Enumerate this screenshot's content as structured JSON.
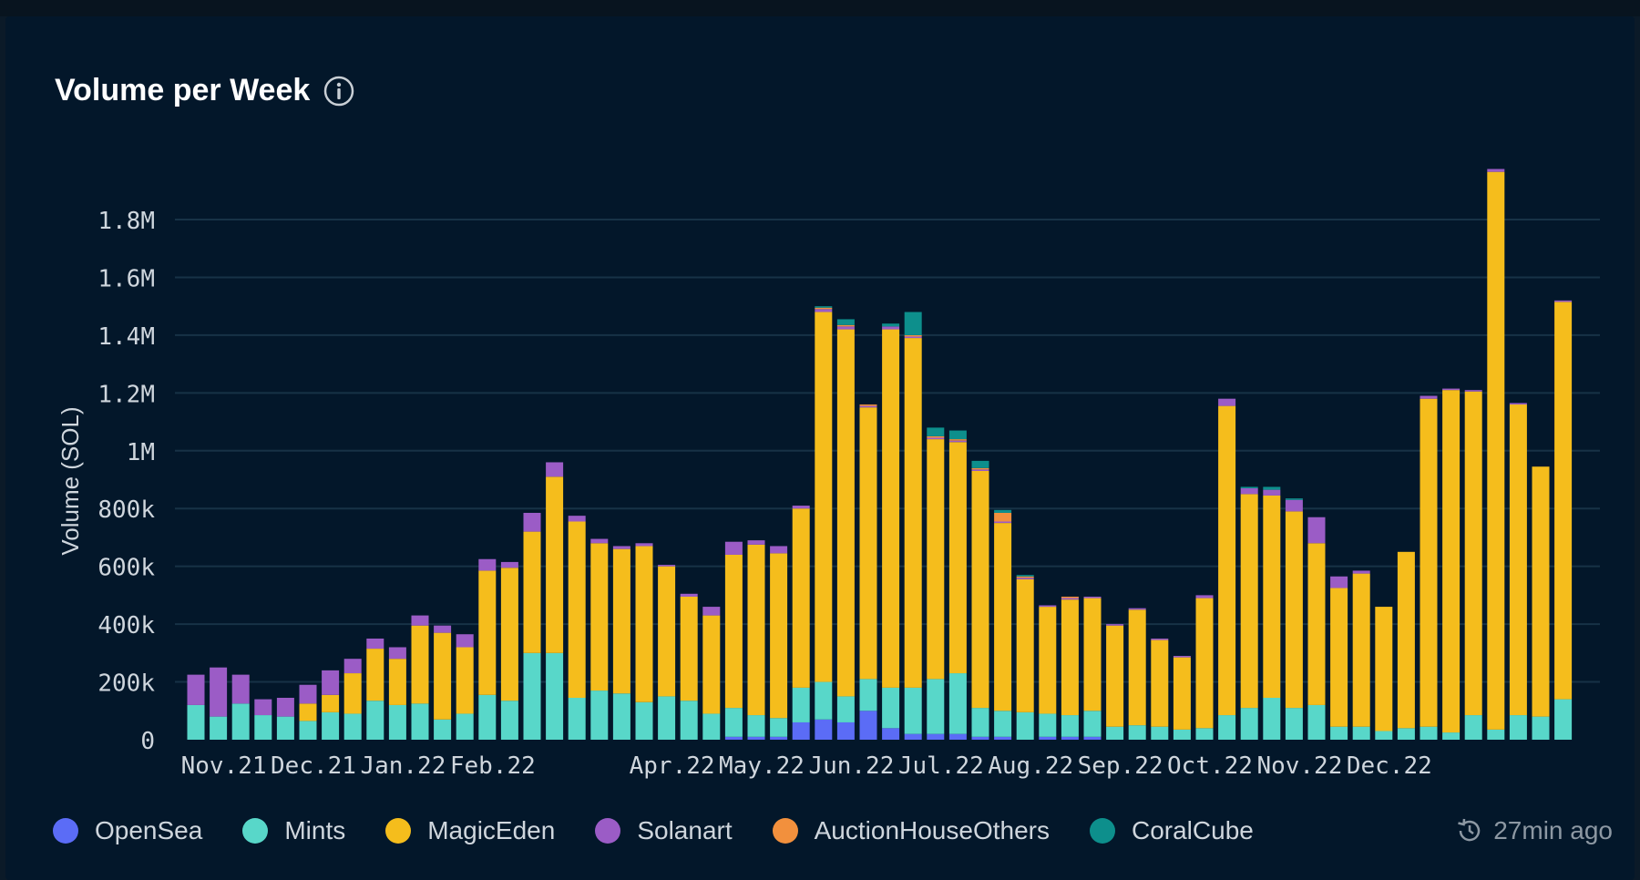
{
  "title": "Volume per Week",
  "updated": "27min ago",
  "icons": {
    "info": "info-icon",
    "refresh": "refresh-clock-icon"
  },
  "colors": {
    "background": "#03172a",
    "grid": "#173246",
    "axis_text": "#cfd6dd"
  },
  "chart_data": {
    "type": "bar",
    "stacked": true,
    "title": "Volume per Week",
    "ylabel": "Volume (SOL)",
    "xlabel": "",
    "ylim": [
      0,
      2000000
    ],
    "y_ticks": [
      {
        "value": 0,
        "label": "0"
      },
      {
        "value": 200000,
        "label": "200k"
      },
      {
        "value": 400000,
        "label": "400k"
      },
      {
        "value": 600000,
        "label": "600k"
      },
      {
        "value": 800000,
        "label": "800k"
      },
      {
        "value": 1000000,
        "label": "1M"
      },
      {
        "value": 1200000,
        "label": "1.2M"
      },
      {
        "value": 1400000,
        "label": "1.4M"
      },
      {
        "value": 1600000,
        "label": "1.6M"
      },
      {
        "value": 1800000,
        "label": "1.8M"
      }
    ],
    "x_ticks": [
      {
        "index": 1,
        "label": "Nov.21"
      },
      {
        "index": 5,
        "label": "Dec.21"
      },
      {
        "index": 9,
        "label": "Jan.22"
      },
      {
        "index": 13,
        "label": "Feb.22"
      },
      {
        "index": 21,
        "label": "Apr.22"
      },
      {
        "index": 25,
        "label": "May.22"
      },
      {
        "index": 29,
        "label": "Jun.22"
      },
      {
        "index": 33,
        "label": "Jul.22"
      },
      {
        "index": 37,
        "label": "Aug.22"
      },
      {
        "index": 41,
        "label": "Sep.22"
      },
      {
        "index": 45,
        "label": "Oct.22"
      },
      {
        "index": 49,
        "label": "Nov.22"
      },
      {
        "index": 53,
        "label": "Dec.22"
      }
    ],
    "grid": true,
    "legend_position": "bottom-left",
    "series": [
      {
        "name": "OpenSea",
        "color": "#5b6cf6",
        "values": [
          0,
          0,
          0,
          0,
          0,
          0,
          0,
          0,
          0,
          0,
          0,
          0,
          0,
          0,
          0,
          0,
          0,
          0,
          0,
          0,
          0,
          0,
          0,
          0,
          10000,
          10000,
          10000,
          60000,
          70000,
          60000,
          100000,
          40000,
          20000,
          20000,
          20000,
          10000,
          10000,
          0,
          10000,
          10000,
          10000,
          0,
          0,
          0,
          0,
          0,
          0,
          0,
          0,
          0,
          0,
          0,
          0,
          0,
          0,
          0,
          0,
          0,
          0,
          0,
          0,
          0
        ]
      },
      {
        "name": "Mints",
        "color": "#58d7c9",
        "values": [
          120000,
          80000,
          125000,
          85000,
          80000,
          65000,
          95000,
          90000,
          135000,
          120000,
          125000,
          70000,
          90000,
          155000,
          135000,
          300000,
          300000,
          145000,
          170000,
          160000,
          130000,
          150000,
          135000,
          90000,
          100000,
          75000,
          65000,
          120000,
          130000,
          90000,
          110000,
          140000,
          160000,
          190000,
          210000,
          100000,
          90000,
          95000,
          80000,
          75000,
          90000,
          45000,
          50000,
          45000,
          35000,
          40000,
          85000,
          110000,
          145000,
          110000,
          120000,
          45000,
          45000,
          30000,
          40000,
          45000,
          25000,
          85000,
          35000,
          85000,
          80000,
          140000
        ]
      },
      {
        "name": "MagicEden",
        "color": "#f5bd1c",
        "values": [
          0,
          0,
          0,
          0,
          0,
          60000,
          60000,
          140000,
          180000,
          160000,
          270000,
          300000,
          230000,
          430000,
          460000,
          420000,
          610000,
          610000,
          510000,
          500000,
          540000,
          450000,
          360000,
          340000,
          530000,
          590000,
          570000,
          620000,
          1280000,
          1270000,
          940000,
          1240000,
          1210000,
          830000,
          800000,
          820000,
          650000,
          460000,
          370000,
          400000,
          390000,
          350000,
          400000,
          300000,
          250000,
          450000,
          1070000,
          740000,
          700000,
          680000,
          560000,
          480000,
          530000,
          430000,
          610000,
          1135000,
          1185000,
          1120000,
          1930000,
          1075000,
          865000,
          1375000
        ]
      },
      {
        "name": "Solanart",
        "color": "#9b5cc6",
        "values": [
          105000,
          170000,
          100000,
          55000,
          65000,
          65000,
          85000,
          50000,
          35000,
          40000,
          35000,
          25000,
          45000,
          40000,
          20000,
          65000,
          50000,
          20000,
          15000,
          10000,
          10000,
          5000,
          10000,
          30000,
          45000,
          15000,
          25000,
          10000,
          10000,
          10000,
          5000,
          10000,
          5000,
          5000,
          5000,
          5000,
          5000,
          5000,
          5000,
          5000,
          5000,
          5000,
          5000,
          5000,
          5000,
          10000,
          25000,
          20000,
          20000,
          40000,
          90000,
          40000,
          10000,
          0,
          0,
          10000,
          5000,
          5000,
          10000,
          5000,
          0,
          5000
        ]
      },
      {
        "name": "AuctionHouseOthers",
        "color": "#f2903d",
        "values": [
          0,
          0,
          0,
          0,
          0,
          0,
          0,
          0,
          0,
          0,
          0,
          0,
          0,
          0,
          0,
          0,
          0,
          0,
          0,
          0,
          0,
          0,
          0,
          0,
          0,
          0,
          0,
          0,
          5000,
          5000,
          5000,
          0,
          5000,
          5000,
          5000,
          5000,
          30000,
          5000,
          0,
          5000,
          0,
          0,
          0,
          0,
          0,
          0,
          0,
          0,
          0,
          0,
          0,
          0,
          0,
          0,
          0,
          0,
          0,
          0,
          0,
          0,
          0,
          0
        ]
      },
      {
        "name": "CoralCube",
        "color": "#0d8f8c",
        "values": [
          0,
          0,
          0,
          0,
          0,
          0,
          0,
          0,
          0,
          0,
          0,
          0,
          0,
          0,
          0,
          0,
          0,
          0,
          0,
          0,
          0,
          0,
          0,
          0,
          0,
          0,
          0,
          0,
          5000,
          20000,
          0,
          10000,
          80000,
          30000,
          30000,
          25000,
          10000,
          5000,
          0,
          0,
          0,
          0,
          0,
          0,
          0,
          0,
          0,
          5000,
          10000,
          5000,
          0,
          0,
          0,
          0,
          0,
          0,
          0,
          0,
          0,
          0,
          0,
          0
        ]
      }
    ]
  },
  "legend": [
    {
      "label": "OpenSea",
      "color": "#5b6cf6"
    },
    {
      "label": "Mints",
      "color": "#58d7c9"
    },
    {
      "label": "MagicEden",
      "color": "#f5bd1c"
    },
    {
      "label": "Solanart",
      "color": "#9b5cc6"
    },
    {
      "label": "AuctionHouseOthers",
      "color": "#f2903d"
    },
    {
      "label": "CoralCube",
      "color": "#0d8f8c"
    }
  ]
}
